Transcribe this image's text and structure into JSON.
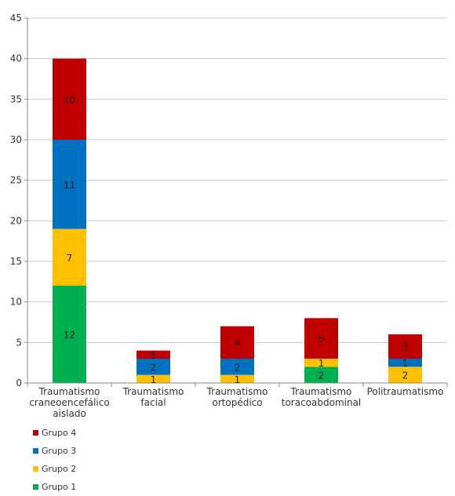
{
  "chart_data": {
    "type": "bar",
    "stacked": true,
    "categories": [
      [
        "Traumatismo",
        "craneoencefálico",
        "aislado"
      ],
      [
        "Traumatismo",
        "facial"
      ],
      [
        "Traumatismo",
        "ortopédico"
      ],
      [
        "Traumatismo",
        "toracoabdominal"
      ],
      [
        "Politraumatismo"
      ]
    ],
    "series": [
      {
        "name": "Grupo 1",
        "color": "#00b050",
        "values": [
          12,
          0,
          0,
          2,
          0
        ]
      },
      {
        "name": "Grupo 2",
        "color": "#ffc000",
        "values": [
          7,
          1,
          1,
          1,
          2
        ]
      },
      {
        "name": "Grupo 3",
        "color": "#0070c0",
        "values": [
          11,
          2,
          2,
          0,
          1
        ]
      },
      {
        "name": "Grupo 4",
        "color": "#c00000",
        "values": [
          10,
          1,
          4,
          5,
          3
        ]
      }
    ],
    "ylim": [
      0,
      45
    ],
    "yticks": [
      0,
      5,
      10,
      15,
      20,
      25,
      30,
      35,
      40,
      45
    ],
    "grid": true,
    "legend_position": "bottom-left",
    "legend_order": [
      "Grupo 4",
      "Grupo 3",
      "Grupo 2",
      "Grupo 1"
    ]
  }
}
